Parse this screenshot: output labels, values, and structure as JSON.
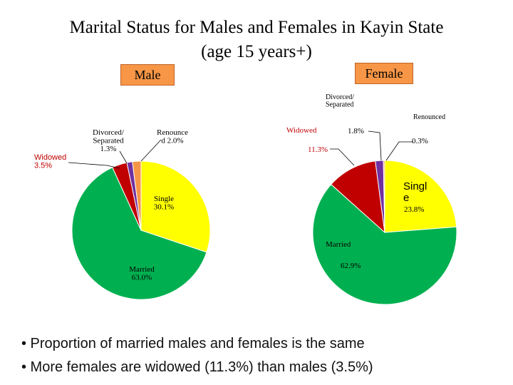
{
  "title_line1": "Marital Status for Males and Females in Kayin State",
  "title_line2": "(age 15 years+)",
  "male_label": "Male",
  "female_label": "Female",
  "bullets": [
    "• Proportion of married males and females is the same",
    "• More females are widowed (11.3%) than males (3.5%)"
  ],
  "chart_data": [
    {
      "type": "pie",
      "name": "Male",
      "slices": [
        {
          "label": "Single",
          "value": 30.1,
          "color": "#ffff00",
          "label_color": "#000000"
        },
        {
          "label": "Married",
          "value": 63.0,
          "color": "#00b050",
          "label_color": "#000000"
        },
        {
          "label": "Widowed",
          "value": 3.5,
          "color": "#c00000",
          "label_color": "#c00000"
        },
        {
          "label": "Divorced/ Separated",
          "value": 1.3,
          "color": "#7030a0",
          "label_color": "#000000"
        },
        {
          "label": "Renounced",
          "value": 2.0,
          "color": "#f79646",
          "label_color": "#000000"
        }
      ],
      "labels": [
        {
          "lines": [
            "Single",
            "30.1%"
          ]
        },
        {
          "lines": [
            "Married",
            "63.0%"
          ]
        },
        {
          "lines": [
            "Widowed",
            "3.5%"
          ]
        },
        {
          "lines": [
            "Divorced/",
            "Separated",
            "1.3%"
          ]
        },
        {
          "lines": [
            "Renounce",
            "d 2.0%"
          ]
        }
      ]
    },
    {
      "type": "pie",
      "name": "Female",
      "slices": [
        {
          "label": "Single",
          "value": 23.8,
          "color": "#ffff00",
          "label_color": "#000000"
        },
        {
          "label": "Married",
          "value": 62.9,
          "color": "#00b050",
          "label_color": "#000000"
        },
        {
          "label": "Widowed",
          "value": 11.3,
          "color": "#c00000",
          "label_color": "#c00000"
        },
        {
          "label": "Divorced/ Separated",
          "value": 1.8,
          "color": "#7030a0",
          "label_color": "#000000"
        },
        {
          "label": "Renounced",
          "value": 0.3,
          "color": "#f79646",
          "label_color": "#000000"
        }
      ],
      "labels": [
        {
          "lines": [
            "Singl",
            "e"
          ]
        },
        {
          "lines": [
            "23.8%"
          ]
        },
        {
          "lines": [
            "Married"
          ]
        },
        {
          "lines": [
            "62.9%"
          ]
        },
        {
          "lines": [
            "Widowed"
          ]
        },
        {
          "lines": [
            "11.3%"
          ]
        },
        {
          "lines": [
            "Divorced/",
            "Separated"
          ]
        },
        {
          "lines": [
            "1.8%"
          ]
        },
        {
          "lines": [
            "Renounced"
          ]
        },
        {
          "lines": [
            "0.3%"
          ]
        }
      ]
    }
  ]
}
